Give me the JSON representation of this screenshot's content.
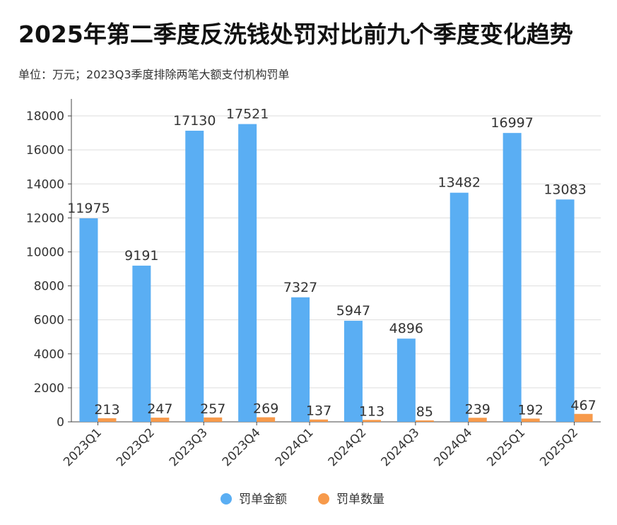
{
  "title": "2025年第二季度反洗钱处罚对比前九个季度变化趋势",
  "subtitle": "单位：万元；2023Q3季度排除两笔大额支付机构罚单",
  "chart_data": {
    "type": "bar",
    "title": "2025年第二季度反洗钱处罚对比前九个季度变化趋势",
    "subtitle": "单位：万元；2023Q3季度排除两笔大额支付机构罚单",
    "xlabel": "",
    "ylabel": "",
    "categories": [
      "2023Q1",
      "2023Q2",
      "2023Q3",
      "2023Q4",
      "2024Q1",
      "2024Q2",
      "2024Q3",
      "2024Q4",
      "2025Q1",
      "2025Q2"
    ],
    "series": [
      {
        "name": "罚单金额",
        "color": "#5AAEF3",
        "values": [
          11975,
          9191,
          17130,
          17521,
          7327,
          5947,
          4896,
          13482,
          16997,
          13083
        ]
      },
      {
        "name": "罚单数量",
        "color": "#F79A4B",
        "values": [
          213,
          247,
          257,
          269,
          137,
          113,
          85,
          239,
          192,
          467
        ]
      }
    ],
    "ylim": [
      0,
      19000
    ],
    "yticks": [
      0,
      2000,
      4000,
      6000,
      8000,
      10000,
      12000,
      14000,
      16000,
      18000
    ],
    "grid": true,
    "legend_position": "bottom-center"
  }
}
